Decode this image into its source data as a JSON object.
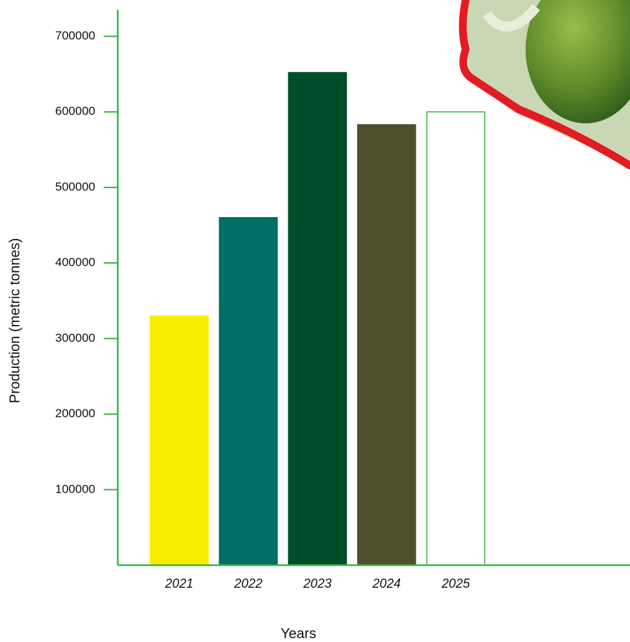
{
  "chart_data": {
    "type": "bar",
    "x_label": "Years",
    "y_label": "Production (metric tonnes)",
    "categories": [
      "2021",
      "2022",
      "2023",
      "2024",
      "2025"
    ],
    "values": [
      330000,
      460000,
      652000,
      583000,
      600000
    ],
    "colors": [
      "#f9ee00",
      "#006e63",
      "#004d2a",
      "#4f4f2d",
      "none"
    ],
    "edgecolors": [
      "#f9ee00",
      "#006e63",
      "#004d2a",
      "#4f4f2d",
      "#3ab54a"
    ],
    "axis_color": "#3ab54a",
    "ylim": [
      0,
      735000
    ],
    "yticks": [
      100000,
      200000,
      300000,
      400000,
      500000,
      600000,
      700000
    ]
  }
}
